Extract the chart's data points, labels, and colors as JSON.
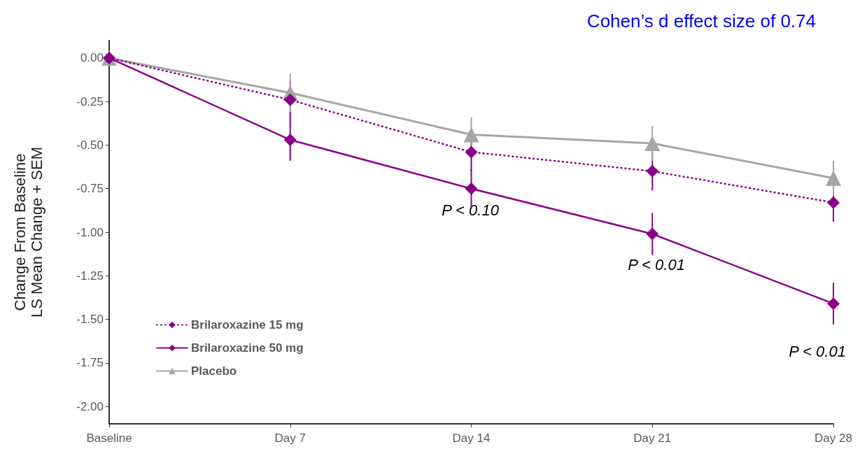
{
  "chart_data": {
    "type": "line",
    "title": "Cohen’s d effect size of 0.74",
    "ylabel": "Change From Baseline\nLS Mean Change + SEM",
    "categories": [
      "Baseline",
      "Day 7",
      "Day 14",
      "Day 21",
      "Day 28"
    ],
    "series": [
      {
        "name": "Brilaroxazine 15 mg",
        "color": "#8b008b",
        "marker": "diamond",
        "line_style": "dotted",
        "values": [
          0,
          -0.24,
          -0.54,
          -0.65,
          -0.83
        ],
        "errors": [
          null,
          0.11,
          0.11,
          0.11,
          0.11
        ]
      },
      {
        "name": "Brilaroxazine 50 mg",
        "color": "#8b008b",
        "marker": "diamond",
        "line_style": "solid",
        "values": [
          0,
          -0.47,
          -0.75,
          -1.01,
          -1.41
        ],
        "errors": [
          null,
          0.12,
          0.11,
          0.12,
          0.12
        ]
      },
      {
        "name": "Placebo",
        "color": "#a6a6a6",
        "marker": "triangle",
        "line_style": "solid",
        "values": [
          0,
          -0.2,
          -0.44,
          -0.49,
          -0.69
        ],
        "errors": [
          null,
          0.11,
          0.1,
          0.1,
          0.1
        ]
      }
    ],
    "ylim": [
      -2.1,
      0.1
    ],
    "yticks": [
      {
        "value": -2,
        "label": "-2.00"
      },
      {
        "value": -1.75,
        "label": "-1.75"
      },
      {
        "value": -1.5,
        "label": "-1.50"
      },
      {
        "value": -1.25,
        "label": "-1.25"
      },
      {
        "value": -1,
        "label": "-1.00"
      },
      {
        "value": -0.75,
        "label": "-0.75"
      },
      {
        "value": -0.5,
        "label": "-0.50"
      },
      {
        "value": -0.25,
        "label": "-0.25"
      },
      {
        "value": 0,
        "label": "0.00"
      }
    ],
    "grid": false,
    "legend": "bottom left",
    "annotations": [
      "P < 0.10",
      "P < 0.01",
      "P < 0.01"
    ]
  }
}
